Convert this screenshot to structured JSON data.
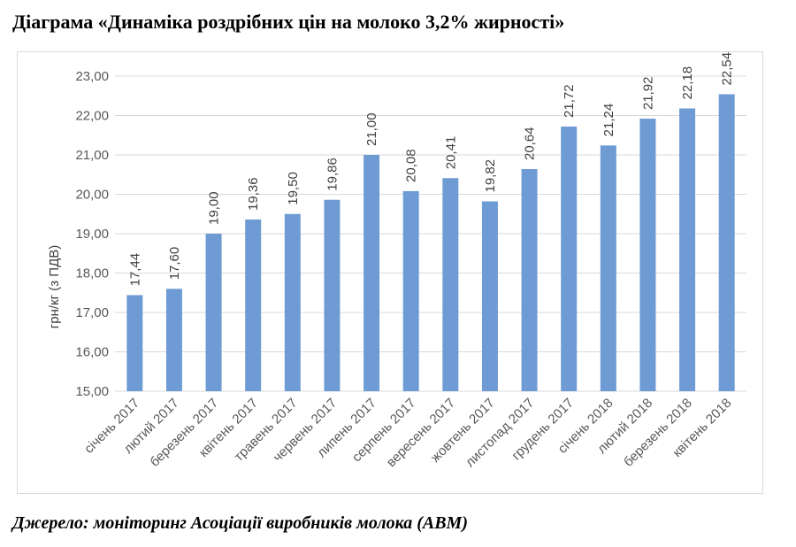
{
  "header": {
    "title": "Діаграма «Динаміка роздрібних цін на молоко 3,2% жирності»"
  },
  "footer": {
    "source": "Джерело: моніторинг Асоціації виробників молока (АВМ)"
  },
  "colors": {
    "bar": "#6f9bd5",
    "grid": "#d9d9d9"
  },
  "chart_data": {
    "type": "bar",
    "title": "",
    "xlabel": "",
    "ylabel": "грн/кг (з ПДВ)",
    "ylim": [
      15,
      23
    ],
    "yticks": [
      "15,00",
      "16,00",
      "17,00",
      "18,00",
      "19,00",
      "20,00",
      "21,00",
      "22,00",
      "23,00"
    ],
    "grid": true,
    "legend": "none",
    "categories": [
      "січень 2017",
      "лютий 2017",
      "березень 2017",
      "квітень 2017",
      "травень 2017",
      "червень 2017",
      "липень 2017",
      "серпень 2017",
      "вересень 2017",
      "жовтень 2017",
      "листопад 2017",
      "грудень 2017",
      "січень 2018",
      "лютий 2018",
      "березень 2018",
      "квітень 2018"
    ],
    "values": [
      17.44,
      17.6,
      19.0,
      19.36,
      19.5,
      19.86,
      21.0,
      20.08,
      20.41,
      19.82,
      20.64,
      21.72,
      21.24,
      21.92,
      22.18,
      22.54
    ],
    "data_labels": [
      "17,44",
      "17,60",
      "19,00",
      "19,36",
      "19,50",
      "19,86",
      "21,00",
      "20,08",
      "20,41",
      "19,82",
      "20,64",
      "21,72",
      "21,24",
      "21,92",
      "22,18",
      "22,54"
    ]
  }
}
